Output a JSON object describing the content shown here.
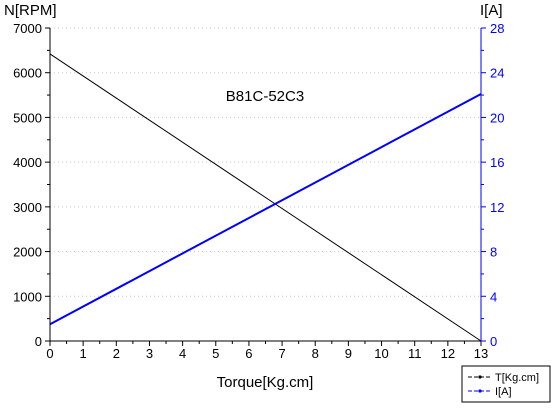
{
  "chart_data": {
    "type": "line",
    "annotation": "B81C-52C3",
    "xlabel": "Torque[Kg.cm]",
    "ylabel_left": "N[RPM]",
    "ylabel_right": "I[A]",
    "xlim": [
      0,
      13
    ],
    "ylim_left": [
      0,
      7000
    ],
    "ylim_right": [
      0,
      28
    ],
    "x_ticks": [
      "0",
      "1",
      "2",
      "3",
      "4",
      "5",
      "6",
      "7",
      "8",
      "9",
      "10",
      "11",
      "12",
      "13"
    ],
    "y_left_ticks": [
      "0",
      "1000",
      "2000",
      "3000",
      "4000",
      "5000",
      "6000",
      "7000"
    ],
    "y_right_ticks": [
      "0",
      "4",
      "8",
      "12",
      "16",
      "20",
      "24",
      "28"
    ],
    "grid": "horizontal dotted",
    "legend_position": "bottom-right",
    "series": [
      {
        "name": "T[Kg.cm]",
        "axis": "left",
        "color": "#000000",
        "x": [
          0,
          13
        ],
        "y": [
          6420,
          0
        ]
      },
      {
        "name": "I[A]",
        "axis": "right",
        "color": "#0000ff",
        "x": [
          0,
          13
        ],
        "y": [
          1.5,
          22.1
        ]
      }
    ],
    "colors": {
      "left_axis": "#000000",
      "right_axis": "#0000ff",
      "grid": "#c8c8c8"
    }
  }
}
